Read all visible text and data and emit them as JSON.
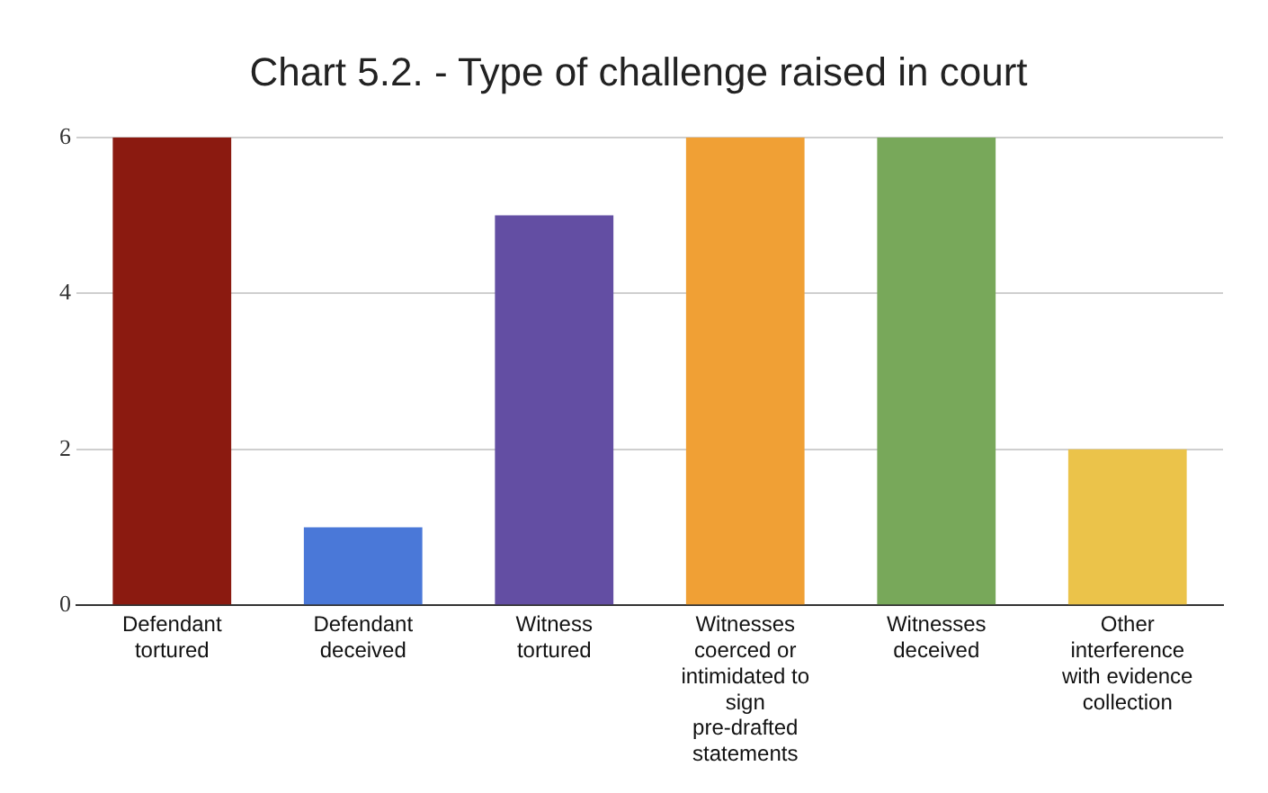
{
  "chart_data": {
    "type": "bar",
    "title": "Chart 5.2. - Type of challenge raised in court",
    "categories": [
      "Defendant tortured",
      "Defendant deceived",
      "Witness tortured",
      "Witnesses coerced or intimidated to sign pre-drafted statements",
      "Witnesses deceived",
      "Other interference with evidence collection"
    ],
    "values": [
      6,
      1,
      5,
      6,
      6,
      2
    ],
    "colors": [
      "#8b1a10",
      "#4a78d8",
      "#634ea3",
      "#f0a035",
      "#78a85a",
      "#ebc34a"
    ],
    "ylim": [
      0,
      6
    ],
    "yticks": [
      0,
      2,
      4,
      6
    ],
    "grid": "y"
  }
}
